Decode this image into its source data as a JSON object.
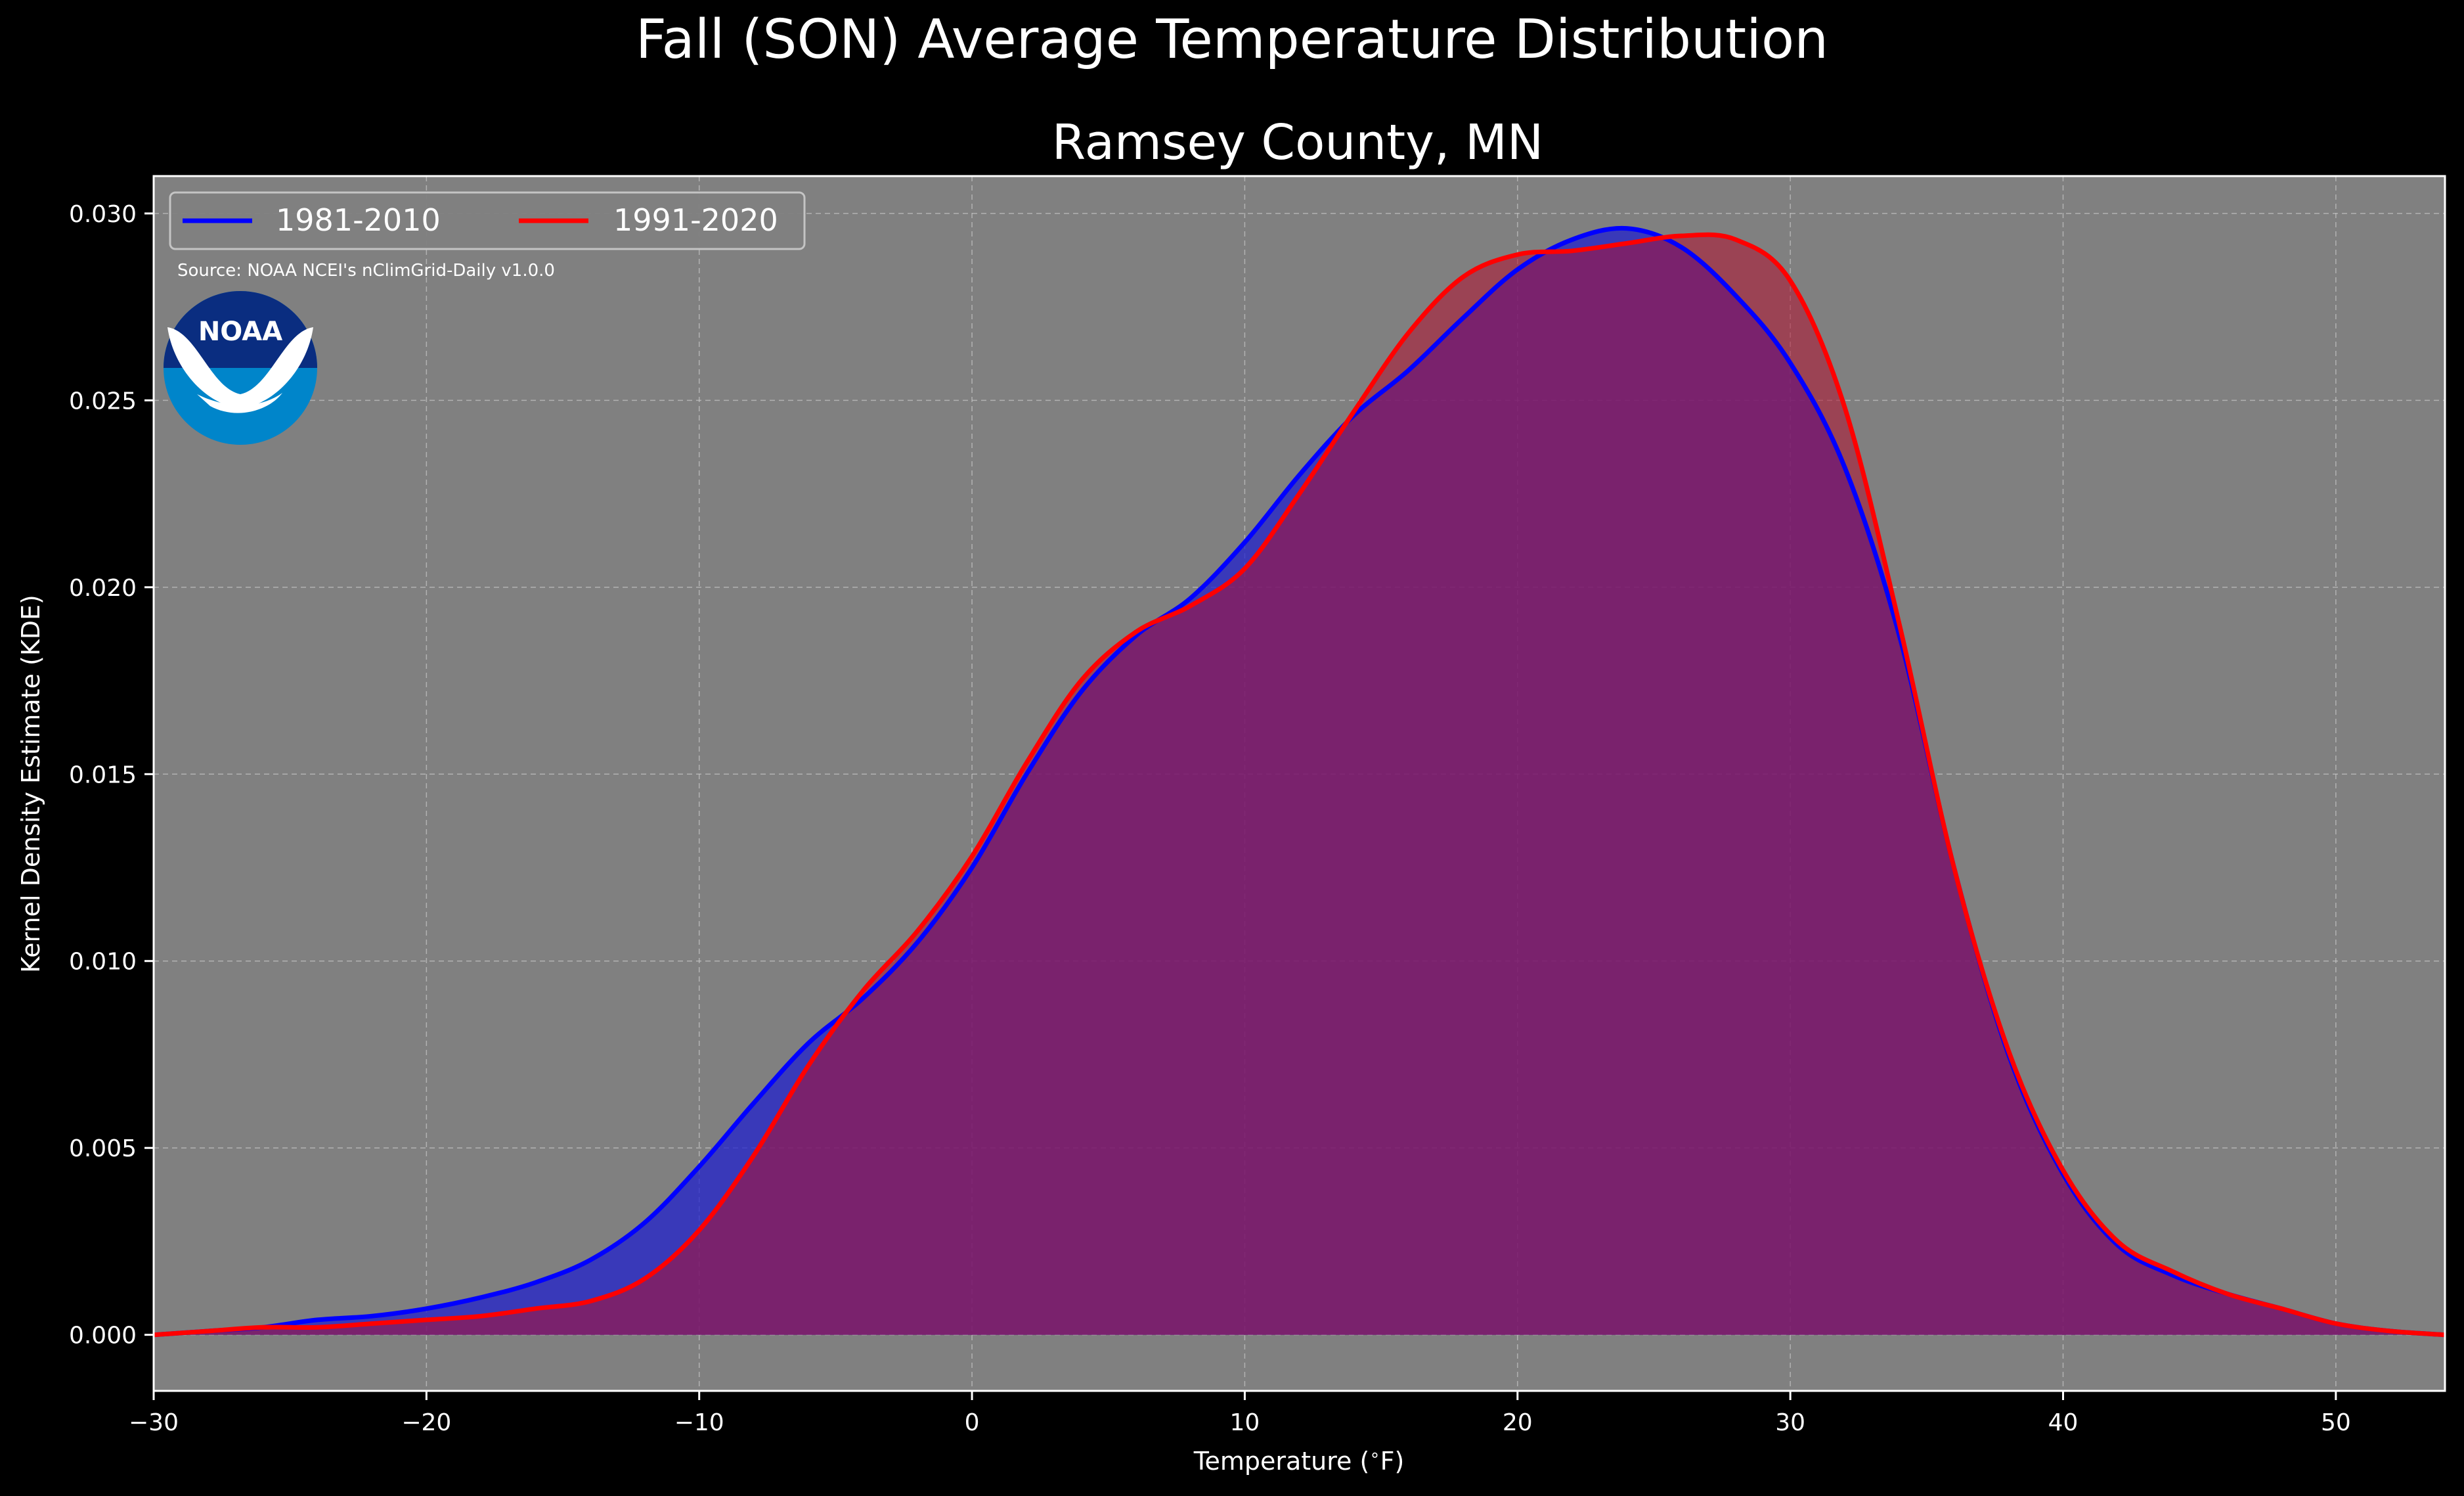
{
  "figure": {
    "suptitle": "Fall (SON) Average Temperature Distribution",
    "title": "Ramsey County, MN",
    "source": "Source: NOAA NCEI's nClimGrid-Daily v1.0.0",
    "logo_text": "NOAA"
  },
  "colors": {
    "background": "#000000",
    "plot_bg": "#808080",
    "series_1981": "#0000ff",
    "series_1991": "#ff0000",
    "fill_1981": "#2222cc",
    "fill_1991": "#b01030",
    "logo_outer": "#0085ca",
    "logo_inner": "#0a2d80"
  },
  "chart_data": {
    "type": "area",
    "xlabel": "Temperature ($^\\circ$F)",
    "ylabel": "Kernel Density Estimate (KDE)",
    "xlim": [
      -30,
      54
    ],
    "ylim": [
      -0.0015,
      0.031
    ],
    "xticks": [
      -30,
      -20,
      -10,
      0,
      10,
      20,
      30,
      40,
      50
    ],
    "xtick_labels": [
      "−30",
      "−20",
      "−10",
      "0",
      "10",
      "20",
      "30",
      "40",
      "50"
    ],
    "yticks": [
      0.0,
      0.005,
      0.01,
      0.015,
      0.02,
      0.025,
      0.03
    ],
    "ytick_labels": [
      "0.000",
      "0.005",
      "0.010",
      "0.015",
      "0.020",
      "0.025",
      "0.030"
    ],
    "grid": true,
    "legend_position": "upper-left",
    "series": [
      {
        "name": "1981-2010",
        "x": [
          -30,
          -28,
          -26,
          -24,
          -22,
          -20,
          -18,
          -16,
          -14,
          -12,
          -10,
          -8,
          -6,
          -4,
          -2,
          0,
          2,
          4,
          6,
          8,
          10,
          12,
          14,
          16,
          18,
          20,
          22,
          24,
          26,
          28,
          30,
          32,
          34,
          36,
          38,
          40,
          42,
          44,
          46,
          48,
          50,
          52,
          54
        ],
        "y": [
          0.0,
          0.0001,
          0.0002,
          0.0004,
          0.0005,
          0.0007,
          0.001,
          0.0014,
          0.002,
          0.003,
          0.0045,
          0.0062,
          0.0078,
          0.009,
          0.0105,
          0.0125,
          0.015,
          0.0172,
          0.0187,
          0.0197,
          0.0212,
          0.023,
          0.0246,
          0.0258,
          0.0272,
          0.0285,
          0.0293,
          0.0296,
          0.0291,
          0.0278,
          0.026,
          0.0232,
          0.0187,
          0.0125,
          0.0075,
          0.0043,
          0.0024,
          0.0016,
          0.0011,
          0.0007,
          0.0003,
          0.0001,
          0.0
        ]
      },
      {
        "name": "1991-2020",
        "x": [
          -30,
          -28,
          -26,
          -24,
          -22,
          -20,
          -18,
          -16,
          -14,
          -12,
          -10,
          -8,
          -6,
          -4,
          -2,
          0,
          2,
          4,
          6,
          8,
          10,
          12,
          14,
          16,
          18,
          20,
          22,
          24,
          26,
          28,
          30,
          32,
          34,
          36,
          38,
          40,
          42,
          44,
          46,
          48,
          50,
          52,
          54
        ],
        "y": [
          0.0,
          0.0001,
          0.0002,
          0.0002,
          0.0003,
          0.0004,
          0.0005,
          0.0007,
          0.0009,
          0.0015,
          0.0028,
          0.0048,
          0.0072,
          0.0092,
          0.0108,
          0.0128,
          0.0153,
          0.0175,
          0.0188,
          0.0195,
          0.0205,
          0.0225,
          0.0247,
          0.0268,
          0.0283,
          0.0289,
          0.029,
          0.0292,
          0.0294,
          0.0293,
          0.0282,
          0.0248,
          0.019,
          0.0125,
          0.0076,
          0.0044,
          0.0025,
          0.0017,
          0.0011,
          0.0007,
          0.0003,
          0.0001,
          0.0
        ]
      }
    ]
  }
}
